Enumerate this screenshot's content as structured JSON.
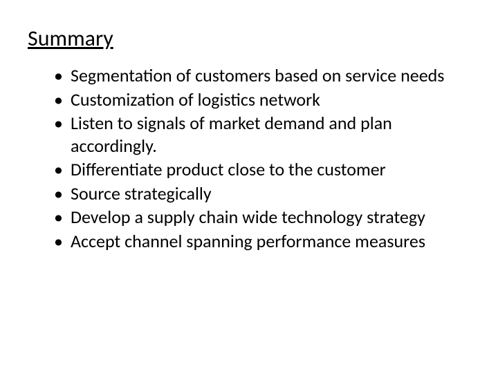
{
  "title": "Summary",
  "bullets": [
    "Segmentation of customers based on service needs",
    "Customization of logistics network",
    "Listen to signals of market demand and plan accordingly.",
    "Differentiate product close to the customer",
    "Source strategically",
    "Develop a supply chain wide technology strategy",
    "Accept channel spanning performance measures"
  ],
  "style": {
    "background_color": "#ffffff",
    "text_color": "#000000",
    "title_fontsize": 32,
    "title_underline": true,
    "bullet_fontsize": 26,
    "font_family": "Calibri"
  }
}
